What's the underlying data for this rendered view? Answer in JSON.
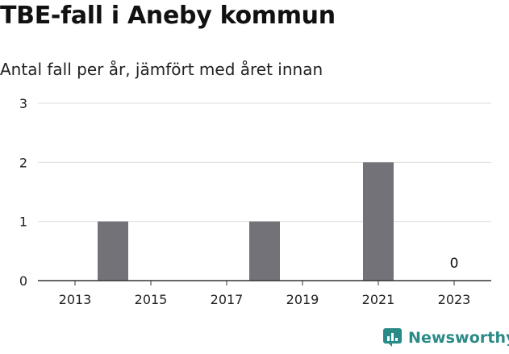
{
  "title": "TBE-fall i Aneby kommun",
  "subtitle": "Antal fall per år, jämfört med året innan",
  "brand": {
    "name": "Newsworthy",
    "color": "#2a8a87"
  },
  "colors": {
    "bar": "#737278",
    "grid": "#dddddd",
    "axis": "#333333"
  },
  "chart_data": {
    "type": "bar",
    "categories": [
      "2013",
      "2014",
      "2015",
      "2016",
      "2017",
      "2018",
      "2019",
      "2020",
      "2021",
      "2022",
      "2023"
    ],
    "values": [
      0,
      1,
      0,
      0,
      0,
      1,
      0,
      0,
      2,
      0,
      0
    ],
    "x_tick_labels": [
      "2013",
      "2015",
      "2017",
      "2019",
      "2021",
      "2023"
    ],
    "y_ticks": [
      0,
      1,
      2,
      3
    ],
    "ylim": [
      0,
      3
    ],
    "data_labels": [
      {
        "category": "2023",
        "text": "0"
      }
    ],
    "grid": true,
    "legend": "none",
    "xlabel": "",
    "ylabel": ""
  }
}
